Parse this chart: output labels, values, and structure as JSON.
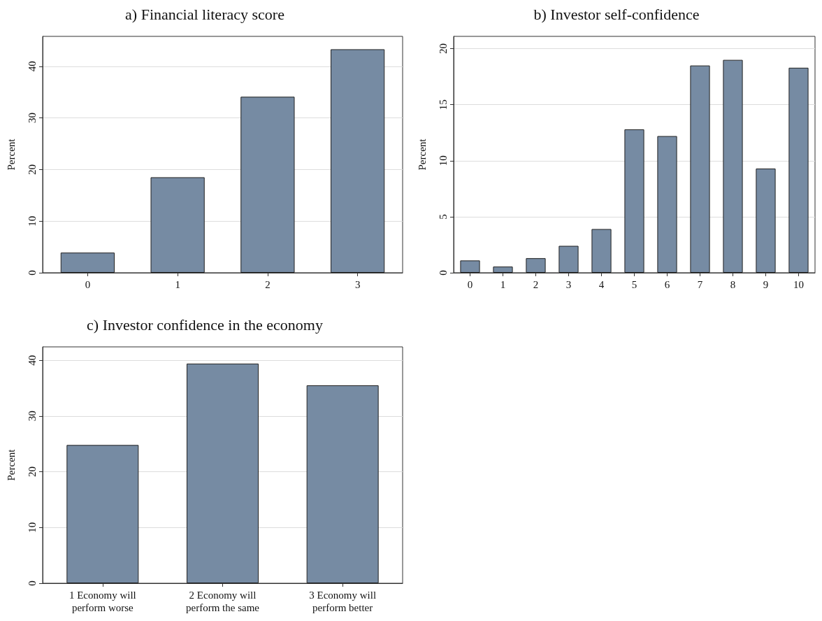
{
  "chart_data": [
    {
      "type": "bar",
      "title": "a) Financial literacy score",
      "ylabel": "Percent",
      "categories": [
        "0",
        "1",
        "2",
        "3"
      ],
      "values": [
        3.9,
        18.5,
        34.1,
        43.3
      ],
      "color": "#768ba3",
      "ylim": [
        0,
        45.8
      ],
      "yticks": [
        0,
        10,
        20,
        30,
        40
      ],
      "grid": "y"
    },
    {
      "type": "bar",
      "title": "b) Investor self-confidence",
      "ylabel": "Percent",
      "categories": [
        "0",
        "1",
        "2",
        "3",
        "4",
        "5",
        "6",
        "7",
        "8",
        "9",
        "10"
      ],
      "values": [
        1.1,
        0.55,
        1.3,
        2.4,
        3.9,
        12.8,
        12.2,
        18.5,
        19.0,
        9.3,
        18.3
      ],
      "color": "#768ba3",
      "ylim": [
        0,
        21.1
      ],
      "yticks": [
        0,
        5,
        10,
        15,
        20
      ],
      "grid": "y"
    },
    {
      "type": "bar",
      "title": "c) Investor confidence in the economy",
      "ylabel": "Percent",
      "categories": [
        "1 Economy will\nperform worse",
        "2 Economy will\nperform the same",
        "3 Economy will\nperform better"
      ],
      "values": [
        24.8,
        39.4,
        35.5
      ],
      "color": "#768ba3",
      "ylim": [
        0,
        42.4
      ],
      "yticks": [
        0,
        10,
        20,
        30,
        40
      ],
      "grid": "y"
    }
  ]
}
